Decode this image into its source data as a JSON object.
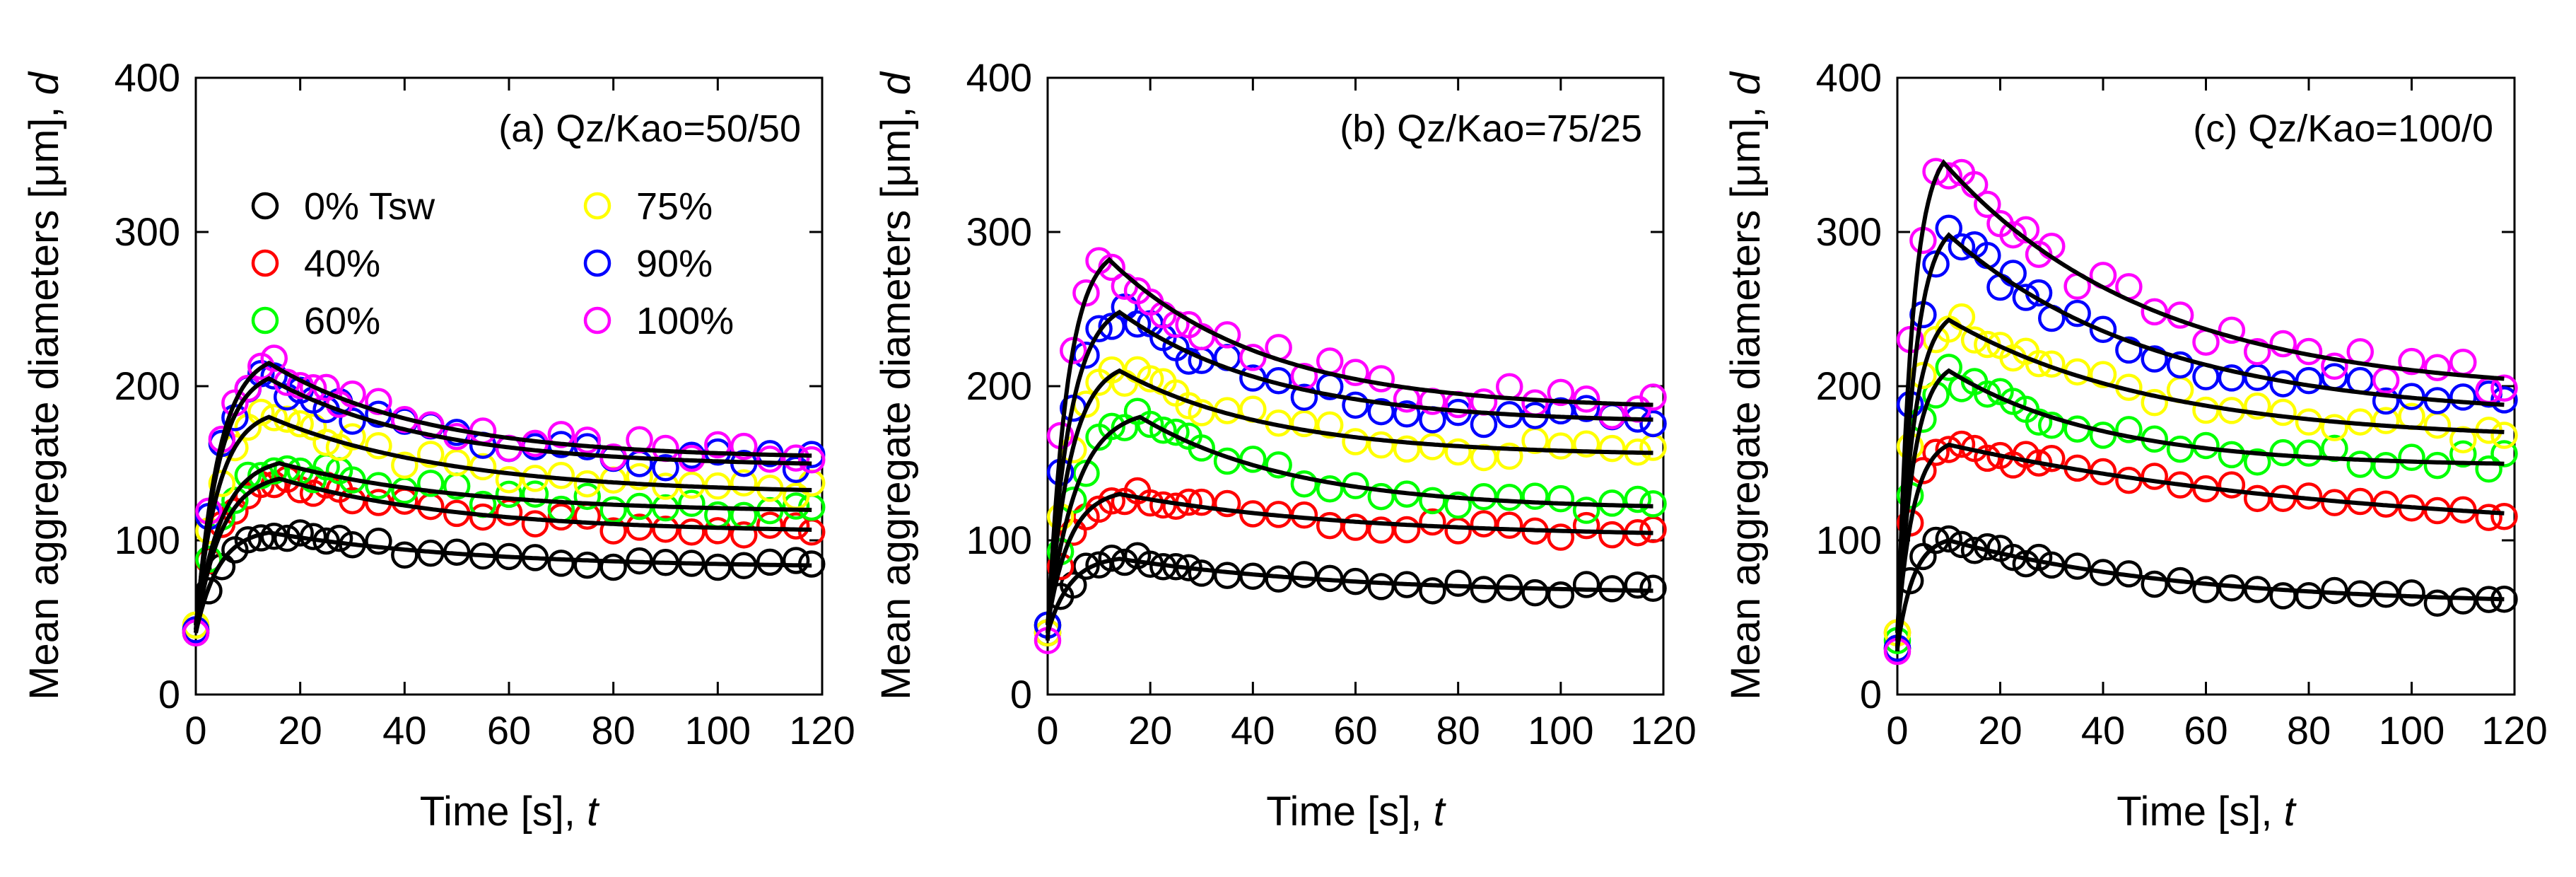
{
  "chart_data": [
    {
      "type": "scatter",
      "title": "(a) Qz/Kao=50/50",
      "xlabel": "Time [s], ",
      "xlabel_var": "t",
      "ylabel": "Mean aggregate diameters [μm], ",
      "ylabel_var": "d",
      "xlim": [
        0,
        120
      ],
      "ylim": [
        0,
        400
      ],
      "xticks": [
        0,
        20,
        40,
        60,
        80,
        100,
        120
      ],
      "yticks": [
        0,
        100,
        200,
        300,
        400
      ],
      "grid": false,
      "fit_curves": true,
      "x_points": [
        0,
        2.5,
        5,
        7.5,
        10,
        12.5,
        15,
        17.5,
        20,
        22.5,
        25,
        27.5,
        30,
        35,
        40,
        45,
        50,
        55,
        60,
        65,
        70,
        75,
        80,
        85,
        90,
        95,
        100,
        105,
        110,
        115,
        118
      ],
      "legend": {
        "position": "top-left",
        "entries": [
          {
            "label": "0% Tsw",
            "color": "#000000"
          },
          {
            "label": "40%",
            "color": "#ff0000"
          },
          {
            "label": "60%",
            "color": "#00ff00"
          },
          {
            "label": "75%",
            "color": "#ffff00"
          },
          {
            "label": "90%",
            "color": "#0000ff"
          },
          {
            "label": "100%",
            "color": "#ff00ff"
          }
        ]
      },
      "series": [
        {
          "name": "0% Tsw",
          "color": "#000000",
          "start": 40,
          "peak": 105,
          "peak_t": 14,
          "end": 82,
          "tau": 40
        },
        {
          "name": "40%",
          "color": "#ff0000",
          "start": 42,
          "peak": 140,
          "peak_t": 16,
          "end": 105,
          "tau": 35
        },
        {
          "name": "60%",
          "color": "#00ff00",
          "start": 45,
          "peak": 150,
          "peak_t": 16,
          "end": 118,
          "tau": 35
        },
        {
          "name": "75%",
          "color": "#ffff00",
          "start": 45,
          "peak": 180,
          "peak_t": 14,
          "end": 130,
          "tau": 35
        },
        {
          "name": "90%",
          "color": "#0000ff",
          "start": 42,
          "peak": 205,
          "peak_t": 14,
          "end": 148,
          "tau": 30
        },
        {
          "name": "100%",
          "color": "#ff00ff",
          "start": 40,
          "peak": 215,
          "peak_t": 14,
          "end": 153,
          "tau": 30
        }
      ]
    },
    {
      "type": "scatter",
      "title": "(b) Qz/Kao=75/25",
      "xlabel": "Time [s], ",
      "xlabel_var": "t",
      "ylabel": "Mean aggregate diameters [μm], ",
      "ylabel_var": "d",
      "xlim": [
        0,
        120
      ],
      "ylim": [
        0,
        400
      ],
      "xticks": [
        0,
        20,
        40,
        60,
        80,
        100,
        120
      ],
      "yticks": [
        0,
        100,
        200,
        300,
        400
      ],
      "grid": false,
      "fit_curves": true,
      "x_points": [
        0,
        2.5,
        5,
        7.5,
        10,
        12.5,
        15,
        17.5,
        20,
        22.5,
        25,
        27.5,
        30,
        35,
        40,
        45,
        50,
        55,
        60,
        65,
        70,
        75,
        80,
        85,
        90,
        95,
        100,
        105,
        110,
        115,
        118
      ],
      "series": [
        {
          "name": "0% Tsw",
          "color": "#000000",
          "start": 40,
          "peak": 88,
          "peak_t": 14,
          "end": 65,
          "tau": 45
        },
        {
          "name": "40%",
          "color": "#ff0000",
          "start": 45,
          "peak": 130,
          "peak_t": 14,
          "end": 102,
          "tau": 45
        },
        {
          "name": "60%",
          "color": "#00ff00",
          "start": 45,
          "peak": 180,
          "peak_t": 18,
          "end": 120,
          "tau": 30
        },
        {
          "name": "75%",
          "color": "#ffff00",
          "start": 40,
          "peak": 210,
          "peak_t": 14,
          "end": 155,
          "tau": 30
        },
        {
          "name": "90%",
          "color": "#0000ff",
          "start": 45,
          "peak": 248,
          "peak_t": 14,
          "end": 176,
          "tau": 30
        },
        {
          "name": "100%",
          "color": "#ff00ff",
          "start": 35,
          "peak": 282,
          "peak_t": 12,
          "end": 185,
          "tau": 30
        }
      ]
    },
    {
      "type": "scatter",
      "title": "(c) Qz/Kao=100/0",
      "xlabel": "Time [s], ",
      "xlabel_var": "t",
      "ylabel": "Mean aggregate diameters [μm], ",
      "ylabel_var": "d",
      "xlim": [
        0,
        120
      ],
      "ylim": [
        0,
        400
      ],
      "xticks": [
        0,
        20,
        40,
        60,
        80,
        100,
        120
      ],
      "yticks": [
        0,
        100,
        200,
        300,
        400
      ],
      "grid": false,
      "fit_curves": true,
      "x_points": [
        0,
        2.5,
        5,
        7.5,
        10,
        12.5,
        15,
        17.5,
        20,
        22.5,
        25,
        27.5,
        30,
        35,
        40,
        45,
        50,
        55,
        60,
        65,
        70,
        75,
        80,
        85,
        90,
        95,
        100,
        105,
        110,
        115,
        118
      ],
      "series": [
        {
          "name": "0% Tsw",
          "color": "#000000",
          "start": 30,
          "peak": 100,
          "peak_t": 10,
          "end": 58,
          "tau": 45
        },
        {
          "name": "40%",
          "color": "#ff0000",
          "start": 40,
          "peak": 162,
          "peak_t": 10,
          "end": 102,
          "tau": 80
        },
        {
          "name": "60%",
          "color": "#00ff00",
          "start": 35,
          "peak": 210,
          "peak_t": 10,
          "end": 148,
          "tau": 30
        },
        {
          "name": "75%",
          "color": "#ffff00",
          "start": 40,
          "peak": 243,
          "peak_t": 10,
          "end": 165,
          "tau": 40
        },
        {
          "name": "90%",
          "color": "#0000ff",
          "start": 30,
          "peak": 298,
          "peak_t": 10,
          "end": 180,
          "tau": 40
        },
        {
          "name": "100%",
          "color": "#ff00ff",
          "start": 28,
          "peak": 345,
          "peak_t": 9,
          "end": 195,
          "tau": 40
        }
      ]
    }
  ]
}
